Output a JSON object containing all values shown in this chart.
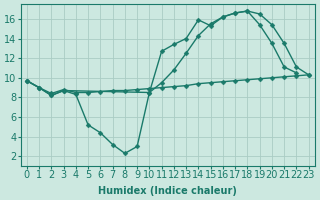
{
  "xlabel": "Humidex (Indice chaleur)",
  "bg_color": "#cce8e0",
  "grid_color": "#aaccC4",
  "line_color": "#1a7a6a",
  "xlim": [
    -0.5,
    23.5
  ],
  "ylim": [
    1.0,
    17.5
  ],
  "xticks": [
    0,
    1,
    2,
    3,
    4,
    5,
    6,
    7,
    8,
    9,
    10,
    11,
    12,
    13,
    14,
    15,
    16,
    17,
    18,
    19,
    20,
    21,
    22,
    23
  ],
  "yticks": [
    2,
    4,
    6,
    8,
    10,
    12,
    14,
    16
  ],
  "line1_x": [
    0,
    1,
    2,
    3,
    4,
    5,
    6,
    7,
    8,
    9,
    10,
    11,
    12,
    13,
    14,
    15,
    16,
    17,
    18,
    19,
    20,
    21,
    22
  ],
  "line1_y": [
    9.7,
    9.0,
    8.2,
    8.7,
    8.3,
    5.2,
    4.4,
    3.2,
    2.3,
    3.0,
    8.5,
    12.7,
    13.4,
    14.0,
    15.9,
    15.3,
    16.2,
    16.6,
    16.8,
    15.4,
    13.5,
    11.1,
    10.5
  ],
  "line2_x": [
    0,
    1,
    2,
    3,
    4,
    5,
    6,
    7,
    8,
    9,
    10,
    11,
    12,
    13,
    14,
    15,
    16,
    17,
    18,
    19,
    20,
    21,
    22,
    23
  ],
  "line2_y": [
    9.7,
    9.0,
    8.4,
    8.8,
    8.5,
    8.5,
    8.6,
    8.7,
    8.7,
    8.8,
    8.9,
    9.0,
    9.1,
    9.2,
    9.4,
    9.5,
    9.6,
    9.7,
    9.8,
    9.9,
    10.0,
    10.1,
    10.2,
    10.3
  ],
  "line3_x": [
    0,
    1,
    2,
    3,
    10,
    11,
    12,
    13,
    14,
    15,
    16,
    17,
    18,
    19,
    20,
    21,
    22,
    23
  ],
  "line3_y": [
    9.7,
    9.0,
    8.2,
    8.7,
    8.5,
    9.5,
    10.8,
    12.5,
    14.3,
    15.5,
    16.2,
    16.6,
    16.8,
    16.5,
    15.4,
    13.5,
    11.1,
    10.3
  ],
  "marker_size": 2.5,
  "font_size": 7,
  "lw": 1.0
}
